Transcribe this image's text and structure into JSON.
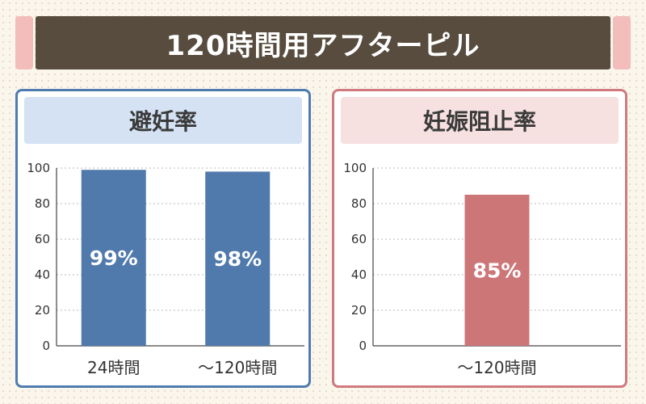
{
  "title": "120時間用アフターピル",
  "colors": {
    "banner": "#574c3e",
    "accent": "#f2bdbb",
    "blue_bar": "#5079ac",
    "red_bar": "#cc7678"
  },
  "chart_data": [
    {
      "type": "bar",
      "title": "避妊率",
      "categories": [
        "24時間",
        "～120時間"
      ],
      "values": [
        99,
        98
      ],
      "value_labels": [
        "99%",
        "98%"
      ],
      "yticks": [
        "0",
        "20",
        "40",
        "60",
        "80",
        "100"
      ],
      "ylim": [
        0,
        100
      ],
      "grid": true
    },
    {
      "type": "bar",
      "title": "妊娠阻止率",
      "categories": [
        "～120時間"
      ],
      "values": [
        85
      ],
      "value_labels": [
        "85%"
      ],
      "yticks": [
        "0",
        "20",
        "40",
        "60",
        "80",
        "100"
      ],
      "ylim": [
        0,
        100
      ],
      "grid": true
    }
  ]
}
